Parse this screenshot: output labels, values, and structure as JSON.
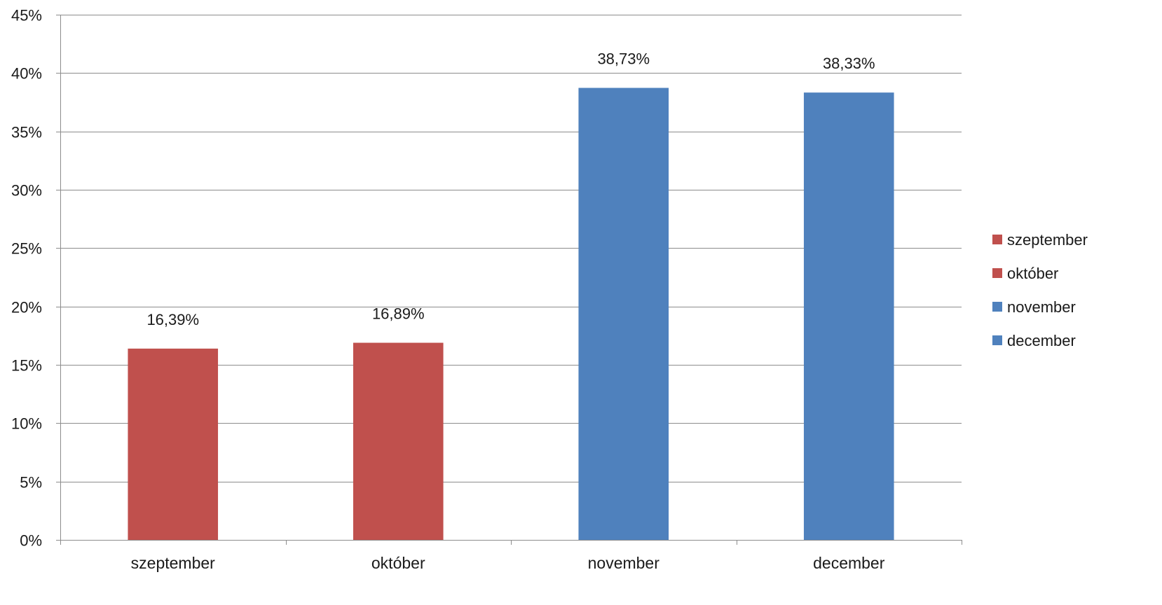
{
  "chart_data": {
    "type": "bar",
    "categories": [
      "szeptember",
      "október",
      "november",
      "december"
    ],
    "values": [
      16.39,
      16.89,
      38.73,
      38.33
    ],
    "value_labels": [
      "16,39%",
      "16,89%",
      "38,73%",
      "38,33%"
    ],
    "bar_colors": [
      "#c0504d",
      "#c0504d",
      "#4f81bd",
      "#4f81bd"
    ],
    "title": "",
    "xlabel": "",
    "ylabel": "",
    "ylim": [
      0,
      45
    ],
    "yticks": [
      0,
      5,
      10,
      15,
      20,
      25,
      30,
      35,
      40,
      45
    ],
    "ytick_labels": [
      "0%",
      "5%",
      "10%",
      "15%",
      "20%",
      "25%",
      "30%",
      "35%",
      "40%",
      "45%"
    ],
    "grid": true,
    "legend_position": "right",
    "legend": [
      {
        "label": "szeptember",
        "color": "#c0504d"
      },
      {
        "label": "október",
        "color": "#c0504d"
      },
      {
        "label": "november",
        "color": "#4f81bd"
      },
      {
        "label": "december",
        "color": "#4f81bd"
      }
    ]
  }
}
